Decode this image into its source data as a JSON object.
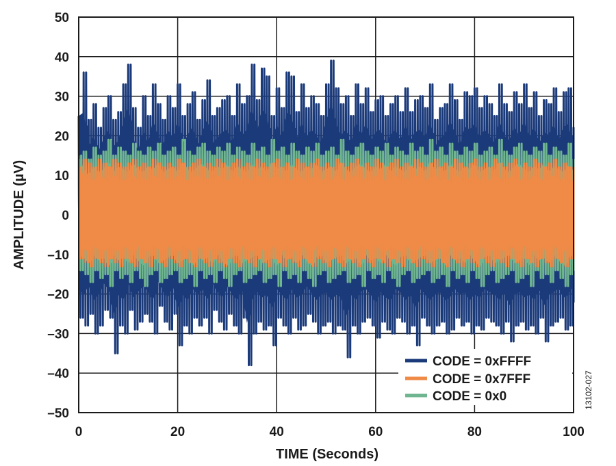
{
  "chart_data": {
    "type": "line",
    "xlabel": "TIME (Seconds)",
    "ylabel": "AMPLITUDE (µV)",
    "xlim": [
      0,
      100
    ],
    "ylim": [
      -50,
      50
    ],
    "grid": true,
    "legend_position": "bottom-right",
    "x_ticks": [
      0,
      20,
      40,
      60,
      80,
      100
    ],
    "x_tick_labels": [
      "0",
      "20",
      "40",
      "60",
      "80",
      "100"
    ],
    "y_ticks": [
      50,
      40,
      30,
      20,
      10,
      0,
      -10,
      -20,
      -30,
      -40,
      -50
    ],
    "y_tick_labels": [
      "50",
      "40",
      "30",
      "20",
      "10",
      "0",
      "–10",
      "–20",
      "–30",
      "–40",
      "–50"
    ],
    "series": [
      {
        "name": "CODE = 0xFFFF",
        "color": "#1b3a7a",
        "x": [
          0,
          1,
          2,
          3,
          4,
          5,
          6,
          7,
          8,
          9,
          10,
          11,
          12,
          13,
          14,
          15,
          16,
          17,
          18,
          19,
          20,
          21,
          22,
          23,
          24,
          25,
          26,
          27,
          28,
          29,
          30,
          31,
          32,
          33,
          34,
          35,
          36,
          37,
          38,
          39,
          40,
          41,
          42,
          43,
          44,
          45,
          46,
          47,
          48,
          49,
          50,
          51,
          52,
          53,
          54,
          55,
          56,
          57,
          58,
          59,
          60,
          61,
          62,
          63,
          64,
          65,
          66,
          67,
          68,
          69,
          70,
          71,
          72,
          73,
          74,
          75,
          76,
          77,
          78,
          79,
          80,
          81,
          82,
          83,
          84,
          85,
          86,
          87,
          88,
          89,
          90,
          91,
          92,
          93,
          94,
          95,
          96,
          97,
          98,
          99,
          100
        ],
        "upper": [
          25,
          36,
          24,
          28,
          22,
          27,
          30,
          24,
          26,
          33,
          38,
          27,
          22,
          30,
          25,
          33,
          28,
          24,
          30,
          27,
          33,
          25,
          28,
          31,
          24,
          29,
          34,
          25,
          27,
          29,
          30,
          25,
          33,
          28,
          30,
          38,
          29,
          37,
          35,
          25,
          32,
          27,
          36,
          35,
          26,
          33,
          27,
          30,
          28,
          25,
          33,
          39,
          32,
          28,
          30,
          25,
          33,
          28,
          32,
          26,
          29,
          30,
          25,
          28,
          30,
          26,
          32,
          26,
          29,
          30,
          27,
          33,
          24,
          27,
          28,
          33,
          29,
          24,
          31,
          30,
          32,
          27,
          30,
          28,
          25,
          33,
          28,
          26,
          31,
          28,
          33,
          27,
          31,
          25,
          29,
          28,
          32,
          26,
          31,
          32,
          22
        ],
        "lower": [
          -26,
          -28,
          -25,
          -30,
          -28,
          -24,
          -26,
          -35,
          -28,
          -30,
          -24,
          -29,
          -27,
          -25,
          -27,
          -30,
          -23,
          -27,
          -29,
          -25,
          -33,
          -28,
          -30,
          -26,
          -28,
          -26,
          -30,
          -24,
          -27,
          -29,
          -25,
          -28,
          -30,
          -26,
          -38,
          -30,
          -27,
          -29,
          -28,
          -33,
          -26,
          -28,
          -30,
          -26,
          -29,
          -28,
          -25,
          -27,
          -30,
          -28,
          -27,
          -30,
          -28,
          -29,
          -36,
          -28,
          -30,
          -27,
          -26,
          -28,
          -31,
          -27,
          -29,
          -30,
          -26,
          -27,
          -30,
          -28,
          -33,
          -26,
          -28,
          -30,
          -28,
          -27,
          -30,
          -29,
          -26,
          -28,
          -27,
          -30,
          -28,
          -29,
          -26,
          -27,
          -28,
          -30,
          -27,
          -32,
          -28,
          -27,
          -29,
          -28,
          -30,
          -26,
          -32,
          -28,
          -27,
          -26,
          -29,
          -28,
          -22
        ]
      },
      {
        "name": "CODE = 0x7FFF",
        "color": "#ef8a47",
        "x": [
          0,
          1,
          2,
          3,
          4,
          5,
          6,
          7,
          8,
          9,
          10,
          11,
          12,
          13,
          14,
          15,
          16,
          17,
          18,
          19,
          20,
          21,
          22,
          23,
          24,
          25,
          26,
          27,
          28,
          29,
          30,
          31,
          32,
          33,
          34,
          35,
          36,
          37,
          38,
          39,
          40,
          41,
          42,
          43,
          44,
          45,
          46,
          47,
          48,
          49,
          50,
          51,
          52,
          53,
          54,
          55,
          56,
          57,
          58,
          59,
          60,
          61,
          62,
          63,
          64,
          65,
          66,
          67,
          68,
          69,
          70,
          71,
          72,
          73,
          74,
          75,
          76,
          77,
          78,
          79,
          80,
          81,
          82,
          83,
          84,
          85,
          86,
          87,
          88,
          89,
          90,
          91,
          92,
          93,
          94,
          95,
          96,
          97,
          98,
          99,
          100
        ],
        "upper": [
          12,
          14,
          13,
          12,
          14,
          13,
          12,
          14,
          13,
          12,
          13,
          14,
          12,
          13,
          12,
          14,
          13,
          12,
          13,
          12,
          14,
          13,
          12,
          13,
          14,
          12,
          13,
          12,
          14,
          13,
          12,
          13,
          14,
          12,
          13,
          12,
          14,
          13,
          12,
          13,
          14,
          12,
          13,
          12,
          14,
          13,
          12,
          13,
          14,
          12,
          13,
          12,
          14,
          13,
          12,
          13,
          14,
          12,
          13,
          12,
          14,
          13,
          12,
          13,
          14,
          12,
          13,
          12,
          14,
          13,
          12,
          13,
          14,
          12,
          13,
          12,
          14,
          13,
          12,
          13,
          14,
          12,
          13,
          12,
          14,
          13,
          12,
          13,
          14,
          12,
          13,
          12,
          14,
          13,
          12,
          13,
          14,
          12,
          13,
          12,
          12
        ],
        "lower": [
          -11,
          -12,
          -13,
          -11,
          -12,
          -13,
          -11,
          -12,
          -13,
          -11,
          -12,
          -13,
          -11,
          -12,
          -13,
          -11,
          -12,
          -13,
          -11,
          -12,
          -13,
          -11,
          -12,
          -13,
          -11,
          -12,
          -13,
          -11,
          -12,
          -13,
          -11,
          -12,
          -13,
          -11,
          -12,
          -13,
          -11,
          -12,
          -13,
          -11,
          -12,
          -13,
          -11,
          -12,
          -13,
          -11,
          -12,
          -13,
          -11,
          -12,
          -13,
          -11,
          -12,
          -13,
          -11,
          -12,
          -13,
          -11,
          -12,
          -13,
          -11,
          -12,
          -13,
          -11,
          -12,
          -13,
          -11,
          -12,
          -13,
          -11,
          -12,
          -13,
          -11,
          -12,
          -13,
          -11,
          -12,
          -13,
          -11,
          -12,
          -13,
          -11,
          -12,
          -13,
          -11,
          -12,
          -13,
          -11,
          -12,
          -13,
          -11,
          -12,
          -13,
          -11,
          -12,
          -13,
          -11,
          -12,
          -13,
          -11,
          -11
        ]
      },
      {
        "name": "CODE = 0x0",
        "color": "#6fb58f",
        "x": [
          0,
          1,
          2,
          3,
          4,
          5,
          6,
          7,
          8,
          9,
          10,
          11,
          12,
          13,
          14,
          15,
          16,
          17,
          18,
          19,
          20,
          21,
          22,
          23,
          24,
          25,
          26,
          27,
          28,
          29,
          30,
          31,
          32,
          33,
          34,
          35,
          36,
          37,
          38,
          39,
          40,
          41,
          42,
          43,
          44,
          45,
          46,
          47,
          48,
          49,
          50,
          51,
          52,
          53,
          54,
          55,
          56,
          57,
          58,
          59,
          60,
          61,
          62,
          63,
          64,
          65,
          66,
          67,
          68,
          69,
          70,
          71,
          72,
          73,
          74,
          75,
          76,
          77,
          78,
          79,
          80,
          81,
          82,
          83,
          84,
          85,
          86,
          87,
          88,
          89,
          90,
          91,
          92,
          93,
          94,
          95,
          96,
          97,
          98,
          99,
          100
        ],
        "upper": [
          15,
          16,
          14,
          17,
          15,
          16,
          19,
          15,
          17,
          16,
          15,
          18,
          16,
          15,
          17,
          16,
          18,
          15,
          16,
          17,
          15,
          19,
          16,
          15,
          17,
          18,
          16,
          15,
          17,
          16,
          18,
          15,
          17,
          16,
          15,
          18,
          16,
          17,
          15,
          19,
          16,
          17,
          15,
          18,
          16,
          15,
          17,
          16,
          18,
          15,
          16,
          17,
          15,
          19,
          16,
          15,
          17,
          18,
          16,
          15,
          17,
          16,
          18,
          15,
          17,
          16,
          15,
          18,
          16,
          17,
          15,
          19,
          16,
          17,
          15,
          18,
          16,
          15,
          17,
          16,
          18,
          15,
          16,
          17,
          15,
          19,
          16,
          15,
          17,
          18,
          16,
          15,
          17,
          16,
          18,
          15,
          17,
          16,
          15,
          18,
          14
        ],
        "lower": [
          -14,
          -15,
          -17,
          -14,
          -16,
          -15,
          -18,
          -14,
          -16,
          -15,
          -17,
          -14,
          -16,
          -18,
          -15,
          -14,
          -17,
          -16,
          -15,
          -14,
          -17,
          -16,
          -15,
          -18,
          -14,
          -16,
          -15,
          -17,
          -14,
          -16,
          -18,
          -15,
          -14,
          -17,
          -16,
          -15,
          -14,
          -17,
          -16,
          -15,
          -18,
          -14,
          -16,
          -15,
          -17,
          -14,
          -16,
          -18,
          -15,
          -14,
          -17,
          -16,
          -15,
          -14,
          -17,
          -16,
          -15,
          -18,
          -14,
          -16,
          -15,
          -17,
          -14,
          -16,
          -18,
          -15,
          -14,
          -17,
          -16,
          -15,
          -14,
          -17,
          -16,
          -15,
          -18,
          -14,
          -16,
          -15,
          -17,
          -14,
          -16,
          -18,
          -15,
          -14,
          -17,
          -16,
          -15,
          -14,
          -17,
          -16,
          -15,
          -18,
          -14,
          -16,
          -15,
          -17,
          -14,
          -16,
          -18,
          -15,
          -14
        ]
      }
    ]
  },
  "figure_id": "13102-027"
}
